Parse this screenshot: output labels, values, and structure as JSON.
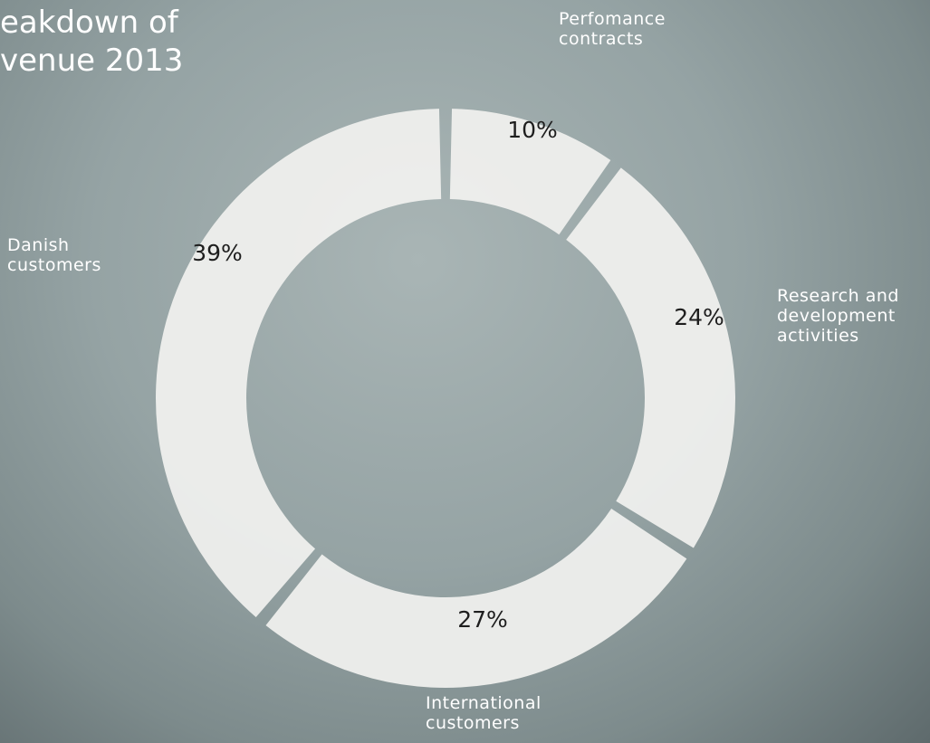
{
  "chart_data": {
    "type": "donut",
    "title": "eakdown of\nvenue 2013",
    "categories": [
      "Perfomance contracts",
      "Research and development activities",
      "International customers",
      "Danish customers"
    ],
    "values": [
      10,
      24,
      27,
      39
    ],
    "value_labels": [
      "10%",
      "24%",
      "27%",
      "39%"
    ],
    "color": "#f1f1ef"
  }
}
